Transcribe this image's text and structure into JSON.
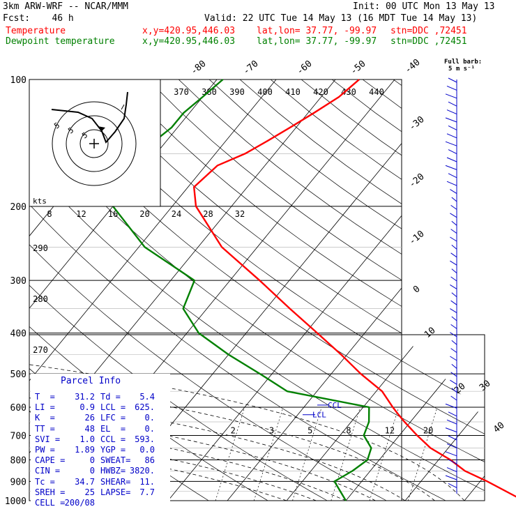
{
  "header": {
    "model": "3km ARW-WRF -- NCAR/MMM",
    "init": "Init: 00 UTC Mon 13 May 13",
    "fcst": "Fcst:    46 h",
    "valid": "Valid: 22 UTC Tue 14 May 13 (16 MDT Tue 14 May 13)",
    "temp_label": "Temperature",
    "dew_label": "Dewpoint temperature",
    "xy": "x,y=420.95,446.03",
    "latlon": "lat,lon= 37.77, -99.97",
    "stn": "stn=DDC ,72451",
    "full_barb": "Full barb:",
    "full_barb_value": "5 m s⁻¹",
    "kts": "kts"
  },
  "colors": {
    "temperature": "#ff0000",
    "dewpoint": "#008000",
    "parcel_info_title": "#0000c8",
    "barbs": "#0000c8"
  },
  "parcel_info": {
    "title": "Parcel Info",
    "rows": [
      [
        "T  =",
        "31.2",
        "Td =",
        "5.4"
      ],
      [
        "LI =",
        "0.9",
        "LCL =",
        "625."
      ],
      [
        "K  =",
        "26",
        "LFC =",
        "0."
      ],
      [
        "TT =",
        "48",
        "EL  =",
        "0."
      ],
      [
        "SVI =",
        "1.0",
        "CCL =",
        "593."
      ],
      [
        "PW =",
        "1.89",
        "YGP =",
        "0.0"
      ],
      [
        "CAPE =",
        "0",
        "SWEAT=",
        "86"
      ],
      [
        "CIN =",
        "0",
        "HWBZ=",
        "3820."
      ],
      [
        "Tc =",
        "34.7",
        "SHEAR=",
        "11."
      ],
      [
        "SREH =",
        "25",
        "LAPSE=",
        "7.7"
      ],
      [
        "CELL =",
        "200/08",
        "",
        ""
      ]
    ]
  },
  "chart_data": {
    "type": "skew-t",
    "y_scale": "log-pressure",
    "pressure_levels": [
      100,
      200,
      300,
      400,
      500,
      600,
      700,
      800,
      900,
      1000
    ],
    "isotherm_labels": [
      "-80",
      "-70",
      "-60",
      "-50",
      "-40",
      "-30",
      "-20",
      "-10",
      "0",
      "10",
      "20",
      "30",
      "40"
    ],
    "theta_labels": [
      "370",
      "380",
      "390",
      "400",
      "410",
      "420",
      "430",
      "440"
    ],
    "theta_left_labels": [
      "290",
      "280",
      "270"
    ],
    "mixing_ratio_labels": [
      "2",
      "3",
      "5",
      "8",
      "12",
      "20"
    ],
    "hodograph_speed_labels": [
      "8",
      "12",
      "16",
      "20",
      "24",
      "28",
      "32"
    ],
    "hodograph_ring_labels": [
      "5",
      "5",
      "5"
    ],
    "lcl_label": "LCL",
    "ccl_label": "CCL",
    "series": [
      {
        "name": "Temperature",
        "pressure": [
          1000,
          900,
          850,
          800,
          750,
          700,
          650,
          625,
          600,
          550,
          500,
          450,
          400,
          350,
          300,
          250,
          200,
          180,
          160,
          150,
          140,
          130,
          120,
          110,
          100
        ],
        "temperature": [
          40,
          31.2,
          26,
          22,
          17,
          13,
          9,
          7,
          5,
          1,
          -5,
          -11,
          -18,
          -26,
          -35,
          -46,
          -56,
          -59,
          -58,
          -55,
          -53,
          -51,
          -49,
          -47,
          -46
        ]
      },
      {
        "name": "Dewpoint temperature",
        "pressure": [
          1000,
          900,
          850,
          800,
          750,
          700,
          650,
          600,
          550,
          500,
          450,
          400,
          350,
          300,
          250,
          200,
          180,
          160,
          150,
          140,
          130,
          120,
          110,
          100
        ],
        "temperature": [
          10,
          5.4,
          7,
          8,
          7,
          4,
          3,
          1,
          -15,
          -22,
          -30,
          -38,
          -44,
          -46,
          -59,
          -70,
          -72,
          -72,
          -72,
          -72,
          -71,
          -71,
          -70,
          -69
        ]
      }
    ]
  }
}
